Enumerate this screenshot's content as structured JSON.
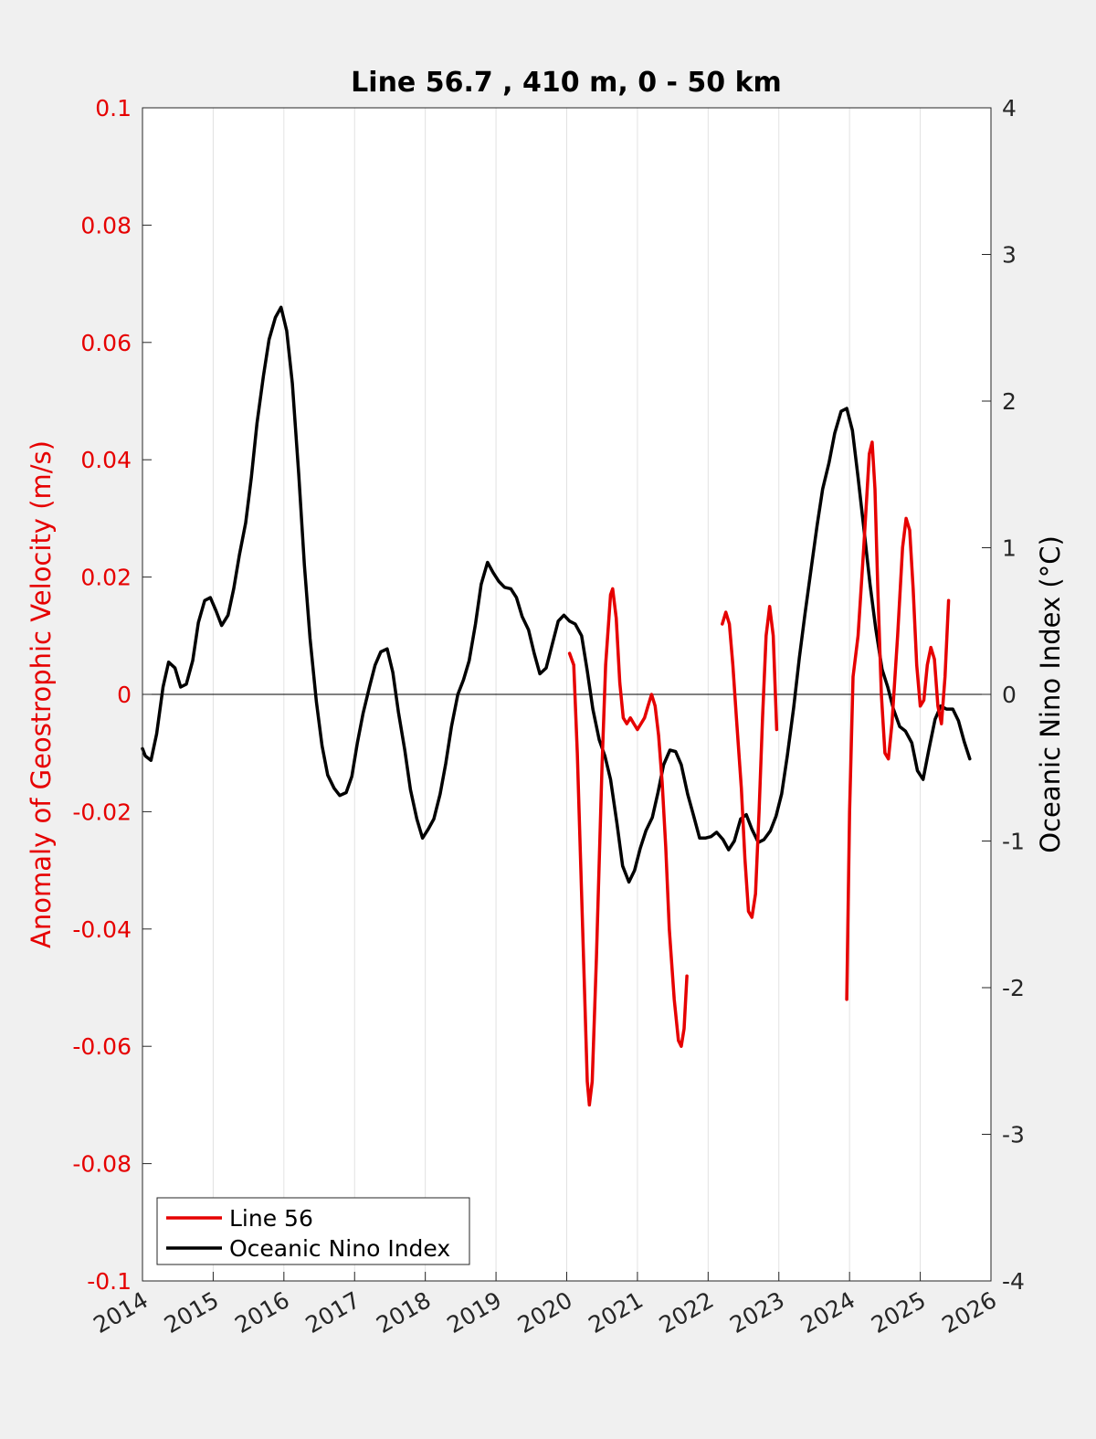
{
  "chart_data": {
    "type": "line",
    "title": "Line 56.7 , 410 m, 0 - 50 km",
    "xlabel": "",
    "xlim": [
      2014,
      2026
    ],
    "xticks": [
      "2014",
      "2015",
      "2016",
      "2017",
      "2018",
      "2019",
      "2020",
      "2021",
      "2022",
      "2023",
      "2024",
      "2025",
      "2026"
    ],
    "left_axis": {
      "label": "Anomaly of Geostrophic Velocity (m/s)",
      "ylim": [
        -0.1,
        0.1
      ],
      "ticks": [
        "0.1",
        "0.08",
        "0.06",
        "0.04",
        "0.02",
        "0",
        "-0.02",
        "-0.04",
        "-0.06",
        "-0.08",
        "-0.1"
      ],
      "tick_values": [
        0.1,
        0.08,
        0.06,
        0.04,
        0.02,
        0,
        -0.02,
        -0.04,
        -0.06,
        -0.08,
        -0.1
      ],
      "color": "#e60000"
    },
    "right_axis": {
      "label": "Oceanic Nino Index (°C)",
      "ylim": [
        -4,
        4
      ],
      "ticks": [
        "4",
        "3",
        "2",
        "1",
        "0",
        "-1",
        "-2",
        "-3",
        "-4"
      ],
      "tick_values": [
        4,
        3,
        2,
        1,
        0,
        -1,
        -2,
        -3,
        -4
      ],
      "color": "#000000"
    },
    "grid": true,
    "legend_position": "bottom-left",
    "series": [
      {
        "name": "Line 56",
        "axis": "left",
        "color": "#e60000",
        "segments": [
          [
            [
              2020.04,
              0.007
            ],
            [
              2020.1,
              0.005
            ],
            [
              2020.15,
              -0.01
            ],
            [
              2020.2,
              -0.03
            ],
            [
              2020.25,
              -0.05
            ],
            [
              2020.29,
              -0.066
            ],
            [
              2020.32,
              -0.07
            ],
            [
              2020.36,
              -0.066
            ],
            [
              2020.42,
              -0.045
            ],
            [
              2020.5,
              -0.012
            ],
            [
              2020.55,
              0.005
            ],
            [
              2020.62,
              0.017
            ],
            [
              2020.65,
              0.018
            ],
            [
              2020.7,
              0.013
            ],
            [
              2020.75,
              0.002
            ],
            [
              2020.8,
              -0.004
            ],
            [
              2020.85,
              -0.005
            ],
            [
              2020.9,
              -0.004
            ],
            [
              2020.95,
              -0.005
            ],
            [
              2021.0,
              -0.006
            ],
            [
              2021.05,
              -0.005
            ],
            [
              2021.1,
              -0.004
            ],
            [
              2021.15,
              -0.002
            ],
            [
              2021.2,
              0.0
            ],
            [
              2021.25,
              -0.002
            ],
            [
              2021.3,
              -0.007
            ],
            [
              2021.35,
              -0.015
            ],
            [
              2021.4,
              -0.026
            ],
            [
              2021.45,
              -0.04
            ],
            [
              2021.52,
              -0.052
            ],
            [
              2021.58,
              -0.059
            ],
            [
              2021.62,
              -0.06
            ],
            [
              2021.66,
              -0.057
            ],
            [
              2021.7,
              -0.048
            ]
          ],
          [
            [
              2022.2,
              0.012
            ],
            [
              2022.25,
              0.014
            ],
            [
              2022.3,
              0.012
            ],
            [
              2022.35,
              0.005
            ],
            [
              2022.4,
              -0.004
            ],
            [
              2022.47,
              -0.016
            ],
            [
              2022.52,
              -0.028
            ],
            [
              2022.57,
              -0.037
            ],
            [
              2022.62,
              -0.038
            ],
            [
              2022.67,
              -0.034
            ],
            [
              2022.72,
              -0.02
            ],
            [
              2022.77,
              -0.004
            ],
            [
              2022.82,
              0.01
            ],
            [
              2022.87,
              0.015
            ],
            [
              2022.92,
              0.01
            ],
            [
              2022.97,
              -0.006
            ]
          ],
          [
            [
              2023.96,
              -0.052
            ],
            [
              2024.0,
              -0.02
            ],
            [
              2024.05,
              0.003
            ],
            [
              2024.12,
              0.01
            ],
            [
              2024.2,
              0.025
            ],
            [
              2024.28,
              0.041
            ],
            [
              2024.32,
              0.043
            ],
            [
              2024.36,
              0.035
            ],
            [
              2024.4,
              0.018
            ],
            [
              2024.45,
              0.0
            ],
            [
              2024.5,
              -0.01
            ],
            [
              2024.55,
              -0.011
            ],
            [
              2024.6,
              -0.005
            ],
            [
              2024.68,
              0.01
            ],
            [
              2024.75,
              0.025
            ],
            [
              2024.8,
              0.03
            ],
            [
              2024.85,
              0.028
            ],
            [
              2024.9,
              0.018
            ],
            [
              2024.95,
              0.005
            ],
            [
              2025.0,
              -0.002
            ],
            [
              2025.05,
              -0.001
            ],
            [
              2025.1,
              0.005
            ],
            [
              2025.15,
              0.008
            ],
            [
              2025.2,
              0.006
            ],
            [
              2025.25,
              -0.002
            ],
            [
              2025.3,
              -0.005
            ],
            [
              2025.35,
              0.003
            ],
            [
              2025.4,
              0.016
            ]
          ]
        ]
      },
      {
        "name": "Oceanic Nino Index",
        "axis": "right",
        "color": "#000000",
        "points": [
          [
            2014.0,
            -0.37
          ],
          [
            2014.04,
            -0.42
          ],
          [
            2014.12,
            -0.45
          ],
          [
            2014.2,
            -0.27
          ],
          [
            2014.29,
            0.05
          ],
          [
            2014.37,
            0.22
          ],
          [
            2014.46,
            0.18
          ],
          [
            2014.54,
            0.05
          ],
          [
            2014.62,
            0.07
          ],
          [
            2014.71,
            0.23
          ],
          [
            2014.79,
            0.49
          ],
          [
            2014.88,
            0.64
          ],
          [
            2014.96,
            0.66
          ],
          [
            2015.04,
            0.57
          ],
          [
            2015.12,
            0.47
          ],
          [
            2015.21,
            0.54
          ],
          [
            2015.29,
            0.72
          ],
          [
            2015.37,
            0.95
          ],
          [
            2015.46,
            1.17
          ],
          [
            2015.54,
            1.48
          ],
          [
            2015.62,
            1.85
          ],
          [
            2015.71,
            2.17
          ],
          [
            2015.79,
            2.42
          ],
          [
            2015.88,
            2.57
          ],
          [
            2015.96,
            2.64
          ],
          [
            2016.04,
            2.48
          ],
          [
            2016.12,
            2.12
          ],
          [
            2016.21,
            1.5
          ],
          [
            2016.29,
            0.88
          ],
          [
            2016.37,
            0.38
          ],
          [
            2016.46,
            -0.05
          ],
          [
            2016.54,
            -0.35
          ],
          [
            2016.62,
            -0.55
          ],
          [
            2016.71,
            -0.64
          ],
          [
            2016.79,
            -0.69
          ],
          [
            2016.88,
            -0.67
          ],
          [
            2016.96,
            -0.56
          ],
          [
            2017.04,
            -0.33
          ],
          [
            2017.12,
            -0.13
          ],
          [
            2017.21,
            0.05
          ],
          [
            2017.29,
            0.2
          ],
          [
            2017.37,
            0.29
          ],
          [
            2017.46,
            0.31
          ],
          [
            2017.54,
            0.15
          ],
          [
            2017.62,
            -0.12
          ],
          [
            2017.71,
            -0.38
          ],
          [
            2017.79,
            -0.65
          ],
          [
            2017.88,
            -0.85
          ],
          [
            2017.96,
            -0.98
          ],
          [
            2018.04,
            -0.92
          ],
          [
            2018.12,
            -0.85
          ],
          [
            2018.21,
            -0.68
          ],
          [
            2018.29,
            -0.47
          ],
          [
            2018.37,
            -0.22
          ],
          [
            2018.46,
            0.0
          ],
          [
            2018.54,
            0.1
          ],
          [
            2018.62,
            0.23
          ],
          [
            2018.71,
            0.48
          ],
          [
            2018.79,
            0.75
          ],
          [
            2018.88,
            0.9
          ],
          [
            2018.96,
            0.83
          ],
          [
            2019.04,
            0.77
          ],
          [
            2019.12,
            0.73
          ],
          [
            2019.21,
            0.72
          ],
          [
            2019.29,
            0.66
          ],
          [
            2019.37,
            0.53
          ],
          [
            2019.46,
            0.44
          ],
          [
            2019.54,
            0.28
          ],
          [
            2019.62,
            0.14
          ],
          [
            2019.71,
            0.18
          ],
          [
            2019.79,
            0.33
          ],
          [
            2019.88,
            0.5
          ],
          [
            2019.96,
            0.54
          ],
          [
            2020.04,
            0.5
          ],
          [
            2020.12,
            0.48
          ],
          [
            2020.21,
            0.4
          ],
          [
            2020.29,
            0.16
          ],
          [
            2020.37,
            -0.1
          ],
          [
            2020.46,
            -0.31
          ],
          [
            2020.54,
            -0.42
          ],
          [
            2020.62,
            -0.58
          ],
          [
            2020.71,
            -0.88
          ],
          [
            2020.79,
            -1.17
          ],
          [
            2020.88,
            -1.28
          ],
          [
            2020.96,
            -1.2
          ],
          [
            2021.04,
            -1.05
          ],
          [
            2021.12,
            -0.93
          ],
          [
            2021.21,
            -0.84
          ],
          [
            2021.29,
            -0.67
          ],
          [
            2021.37,
            -0.48
          ],
          [
            2021.46,
            -0.38
          ],
          [
            2021.54,
            -0.39
          ],
          [
            2021.62,
            -0.48
          ],
          [
            2021.71,
            -0.68
          ],
          [
            2021.79,
            -0.82
          ],
          [
            2021.88,
            -0.98
          ],
          [
            2021.96,
            -0.98
          ],
          [
            2022.04,
            -0.97
          ],
          [
            2022.12,
            -0.94
          ],
          [
            2022.21,
            -0.99
          ],
          [
            2022.29,
            -1.06
          ],
          [
            2022.37,
            -1.0
          ],
          [
            2022.46,
            -0.85
          ],
          [
            2022.54,
            -0.82
          ],
          [
            2022.62,
            -0.92
          ],
          [
            2022.71,
            -1.01
          ],
          [
            2022.79,
            -0.99
          ],
          [
            2022.88,
            -0.93
          ],
          [
            2022.96,
            -0.83
          ],
          [
            2023.04,
            -0.68
          ],
          [
            2023.12,
            -0.42
          ],
          [
            2023.21,
            -0.09
          ],
          [
            2023.29,
            0.25
          ],
          [
            2023.37,
            0.55
          ],
          [
            2023.46,
            0.87
          ],
          [
            2023.54,
            1.15
          ],
          [
            2023.62,
            1.4
          ],
          [
            2023.71,
            1.58
          ],
          [
            2023.79,
            1.78
          ],
          [
            2023.88,
            1.93
          ],
          [
            2023.96,
            1.95
          ],
          [
            2024.04,
            1.8
          ],
          [
            2024.12,
            1.48
          ],
          [
            2024.21,
            1.1
          ],
          [
            2024.29,
            0.75
          ],
          [
            2024.37,
            0.45
          ],
          [
            2024.46,
            0.17
          ],
          [
            2024.54,
            0.05
          ],
          [
            2024.62,
            -0.1
          ],
          [
            2024.71,
            -0.22
          ],
          [
            2024.79,
            -0.25
          ],
          [
            2024.88,
            -0.33
          ],
          [
            2024.96,
            -0.52
          ],
          [
            2025.04,
            -0.58
          ],
          [
            2025.12,
            -0.38
          ],
          [
            2025.21,
            -0.17
          ],
          [
            2025.29,
            -0.08
          ],
          [
            2025.37,
            -0.1
          ],
          [
            2025.46,
            -0.1
          ],
          [
            2025.54,
            -0.18
          ],
          [
            2025.62,
            -0.32
          ],
          [
            2025.7,
            -0.44
          ]
        ]
      }
    ],
    "zero_line": true
  }
}
